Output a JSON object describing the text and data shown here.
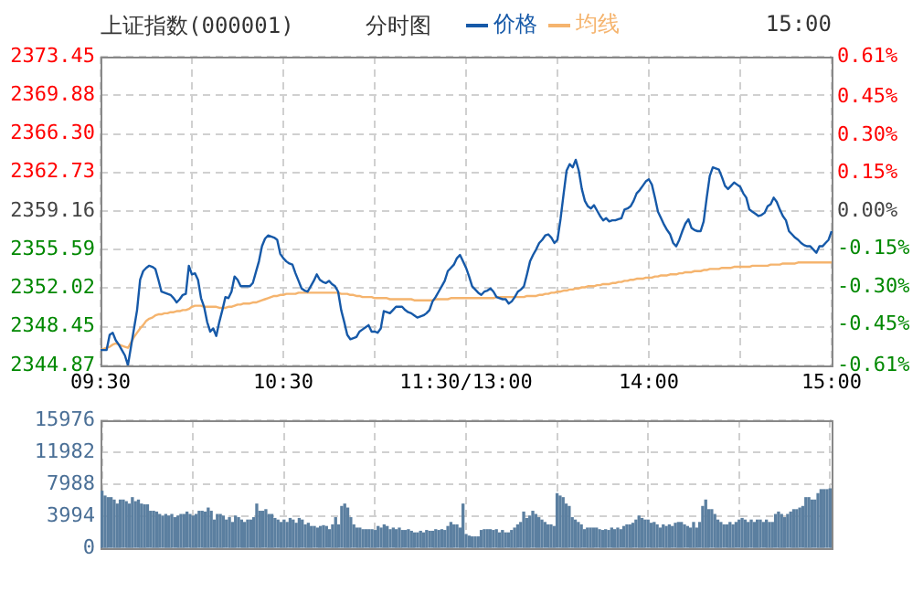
{
  "chart_data": [
    {
      "type": "line",
      "title": "上证指数(000001)",
      "subtitle": "分时图",
      "annotations": [
        "15:00"
      ],
      "legend": "top",
      "grid": true,
      "categories": [
        "09:30",
        null,
        null,
        null,
        null,
        null,
        null,
        null,
        null,
        null,
        null,
        null,
        null,
        null,
        null,
        null,
        null,
        null,
        null,
        null,
        null,
        null,
        null,
        null,
        null,
        null,
        null,
        null,
        null,
        null,
        null,
        null,
        null,
        null,
        null,
        null,
        null,
        null,
        null,
        null,
        null,
        null,
        null,
        null,
        null,
        null,
        null,
        null,
        null,
        null,
        null,
        null,
        null,
        null,
        null,
        null,
        null,
        null,
        null,
        null,
        "10:30",
        null,
        null,
        null,
        null,
        null,
        null,
        null,
        null,
        null,
        null,
        null,
        null,
        null,
        null,
        null,
        null,
        null,
        null,
        null,
        null,
        null,
        null,
        null,
        null,
        null,
        null,
        null,
        null,
        null,
        null,
        null,
        null,
        null,
        null,
        null,
        null,
        null,
        null,
        null,
        null,
        null,
        null,
        null,
        null,
        null,
        null,
        null,
        null,
        null,
        null,
        null,
        null,
        null,
        null,
        null,
        null,
        null,
        null,
        null,
        "11:30/13:00",
        null,
        null,
        null,
        null,
        null,
        null,
        null,
        null,
        null,
        null,
        null,
        null,
        null,
        null,
        null,
        null,
        null,
        null,
        null,
        null,
        null,
        null,
        null,
        null,
        null,
        null,
        null,
        null,
        null,
        null,
        null,
        null,
        null,
        null,
        null,
        null,
        null,
        null,
        null,
        null,
        null,
        null,
        null,
        null,
        null,
        null,
        null,
        null,
        null,
        null,
        null,
        null,
        null,
        null,
        null,
        null,
        null,
        null,
        null,
        "14:00",
        null,
        null,
        null,
        null,
        null,
        null,
        null,
        null,
        null,
        null,
        null,
        null,
        null,
        null,
        null,
        null,
        null,
        null,
        null,
        null,
        null,
        null,
        null,
        null,
        null,
        null,
        null,
        null,
        null,
        null,
        null,
        null,
        null,
        null,
        null,
        null,
        null,
        null,
        null,
        null,
        null,
        null,
        null,
        null,
        null,
        null,
        null,
        null,
        null,
        null,
        null,
        null,
        null,
        null,
        null,
        null,
        null,
        null,
        null,
        "15:00"
      ],
      "ylim": [
        2344.87,
        2373.45
      ],
      "yticks": [
        2344.87,
        2348.45,
        2352.02,
        2355.59,
        2359.16,
        2362.73,
        {
          "value": 2366.3,
          "label": "2366.30"
        },
        2369.88,
        2373.45
      ],
      "y2lim": [
        -0.61,
        0.61
      ],
      "y2ticks": [
        {
          "value": -0.61,
          "label": "-0.61%"
        },
        {
          "value": -0.45,
          "label": "-0.45%"
        },
        {
          "value": -0.3,
          "label": "-0.30%"
        },
        {
          "value": -0.15,
          "label": "-0.15%"
        },
        {
          "value": 0,
          "label": "0.00%"
        },
        {
          "value": 0.15,
          "label": "0.15%"
        },
        {
          "value": 0.3,
          "label": "0.30%"
        },
        {
          "value": 0.45,
          "label": "0.45%"
        },
        {
          "value": 0.61,
          "label": "0.61%"
        }
      ],
      "series": [
        {
          "name": "价格",
          "color": "#1659a8",
          "values": [
            2346.3,
            2346.3,
            2346.3,
            2347.7,
            2347.9,
            2347.2,
            2346.8,
            2346.3,
            2345.8,
            2344.9,
            2346.6,
            2348.3,
            2350.0,
            2352.8,
            2353.6,
            2353.9,
            2354.1,
            2354.0,
            2353.8,
            2352.8,
            2351.7,
            2351.6,
            2351.5,
            2351.4,
            2351.1,
            2350.7,
            2351.0,
            2351.4,
            2351.5,
            2354.1,
            2353.3,
            2353.4,
            2352.8,
            2351.1,
            2350.3,
            2348.9,
            2348.0,
            2348.3,
            2347.6,
            2348.9,
            2350.0,
            2351.2,
            2351.1,
            2351.7,
            2353.1,
            2352.8,
            2352.2,
            2352.2,
            2352.2,
            2352.2,
            2352.5,
            2353.5,
            2354.5,
            2355.9,
            2356.6,
            2356.9,
            2356.8,
            2356.7,
            2356.5,
            2355.2,
            2354.8,
            2354.5,
            2354.3,
            2354.2,
            2353.4,
            2352.7,
            2352.0,
            2351.8,
            2351.7,
            2352.2,
            2352.7,
            2353.3,
            2352.8,
            2352.6,
            2352.5,
            2352.7,
            2352.4,
            2352.2,
            2351.7,
            2350.0,
            2348.9,
            2347.7,
            2347.3,
            2347.4,
            2347.5,
            2348.0,
            2348.2,
            2348.4,
            2348.6,
            2348.0,
            2348.0,
            2347.9,
            2348.3,
            2349.9,
            2349.8,
            2349.7,
            2350.0,
            2350.3,
            2350.3,
            2350.3,
            2350.0,
            2349.8,
            2349.7,
            2349.5,
            2349.3,
            2349.4,
            2349.5,
            2349.7,
            2350.0,
            2350.8,
            2351.2,
            2351.7,
            2352.2,
            2352.7,
            2353.6,
            2353.9,
            2354.2,
            2354.8,
            2355.1,
            2354.5,
            2353.9,
            2353.1,
            2352.2,
            2351.9,
            2351.6,
            2351.4,
            2351.7,
            2351.8,
            2352.0,
            2351.7,
            2351.2,
            2351.1,
            2351.0,
            2351.0,
            2350.6,
            2350.8,
            2351.2,
            2351.7,
            2351.9,
            2352.2,
            2353.3,
            2354.5,
            2355.1,
            2355.6,
            2356.2,
            2356.5,
            2356.9,
            2357.0,
            2356.7,
            2356.2,
            2356.5,
            2358.4,
            2360.7,
            2362.9,
            2363.5,
            2363.2,
            2363.9,
            2362.9,
            2361.2,
            2360.1,
            2359.6,
            2359.4,
            2359.7,
            2359.2,
            2358.7,
            2358.3,
            2358.5,
            2358.2,
            2358.3,
            2358.3,
            2358.4,
            2358.5,
            2359.3,
            2359.4,
            2359.6,
            2360.1,
            2360.8,
            2361.1,
            2361.5,
            2361.9,
            2362.1,
            2361.6,
            2360.4,
            2359.1,
            2358.5,
            2357.9,
            2357.4,
            2357.0,
            2356.2,
            2355.9,
            2356.5,
            2357.3,
            2358.0,
            2358.4,
            2357.6,
            2357.4,
            2357.3,
            2357.3,
            2358.2,
            2360.4,
            2362.4,
            2363.2,
            2363.1,
            2363.0,
            2362.3,
            2361.5,
            2361.2,
            2361.5,
            2361.8,
            2361.6,
            2361.4,
            2360.8,
            2360.4,
            2359.3,
            2359.1,
            2358.9,
            2358.7,
            2358.8,
            2359.0,
            2359.6,
            2359.8,
            2360.4,
            2360.0,
            2359.3,
            2358.7,
            2358.3,
            2357.3,
            2357.0,
            2356.7,
            2356.5,
            2356.2,
            2356.0,
            2355.9,
            2355.9,
            2355.6,
            2355.3,
            2355.9,
            2355.9,
            2356.2,
            2356.5,
            2357.3
          ]
        },
        {
          "name": "均线",
          "color": "#f5b46e",
          "values": [
            2346.3,
            2346.4,
            2346.5,
            2346.6,
            2346.8,
            2346.9,
            2346.8,
            2346.7,
            2346.6,
            2346.5,
            2347.0,
            2347.5,
            2347.9,
            2348.3,
            2348.6,
            2349.0,
            2349.2,
            2349.3,
            2349.5,
            2349.6,
            2349.6,
            2349.7,
            2349.7,
            2349.8,
            2349.8,
            2349.9,
            2349.9,
            2350.0,
            2350.0,
            2350.1,
            2350.3,
            2350.4,
            2350.4,
            2350.4,
            2350.3,
            2350.3,
            2350.3,
            2350.3,
            2350.3,
            2350.2,
            2350.2,
            2350.2,
            2350.3,
            2350.3,
            2350.4,
            2350.5,
            2350.5,
            2350.6,
            2350.6,
            2350.6,
            2350.7,
            2350.7,
            2350.8,
            2350.9,
            2351.0,
            2351.1,
            2351.2,
            2351.3,
            2351.3,
            2351.4,
            2351.4,
            2351.5,
            2351.5,
            2351.5,
            2351.5,
            2351.6,
            2351.6,
            2351.6,
            2351.6,
            2351.6,
            2351.6,
            2351.6,
            2351.6,
            2351.6,
            2351.6,
            2351.6,
            2351.6,
            2351.6,
            2351.6,
            2351.5,
            2351.5,
            2351.5,
            2351.4,
            2351.4,
            2351.3,
            2351.3,
            2351.2,
            2351.2,
            2351.2,
            2351.2,
            2351.1,
            2351.1,
            2351.1,
            2351.1,
            2351.1,
            2351.0,
            2351.0,
            2351.0,
            2351.0,
            2351.0,
            2351.0,
            2351.0,
            2351.0,
            2350.9,
            2350.9,
            2350.9,
            2350.9,
            2350.9,
            2350.9,
            2350.9,
            2351.0,
            2351.0,
            2351.0,
            2351.0,
            2351.0,
            2351.1,
            2351.1,
            2351.1,
            2351.1,
            2351.1,
            2351.1,
            2351.1,
            2351.1,
            2351.1,
            2351.1,
            2351.1,
            2351.1,
            2351.1,
            2351.1,
            2351.1,
            2351.2,
            2351.2,
            2351.2,
            2351.2,
            2351.2,
            2351.2,
            2351.2,
            2351.2,
            2351.2,
            2351.2,
            2351.3,
            2351.3,
            2351.3,
            2351.3,
            2351.4,
            2351.4,
            2351.5,
            2351.5,
            2351.6,
            2351.6,
            2351.7,
            2351.7,
            2351.8,
            2351.8,
            2351.9,
            2351.9,
            2352.0,
            2352.0,
            2352.1,
            2352.1,
            2352.2,
            2352.2,
            2352.2,
            2352.3,
            2352.3,
            2352.4,
            2352.4,
            2352.4,
            2352.5,
            2352.5,
            2352.6,
            2352.6,
            2352.7,
            2352.7,
            2352.8,
            2352.8,
            2352.9,
            2352.9,
            2352.9,
            2353.0,
            2353.0,
            2353.0,
            2353.1,
            2353.1,
            2353.2,
            2353.2,
            2353.2,
            2353.3,
            2353.3,
            2353.3,
            2353.4,
            2353.4,
            2353.5,
            2353.5,
            2353.5,
            2353.6,
            2353.6,
            2353.6,
            2353.7,
            2353.7,
            2353.8,
            2353.8,
            2353.8,
            2353.8,
            2353.9,
            2353.9,
            2353.9,
            2353.9,
            2354.0,
            2354.0,
            2354.0,
            2354.0,
            2354.0,
            2354.0,
            2354.1,
            2354.1,
            2354.1,
            2354.1,
            2354.1,
            2354.1,
            2354.2,
            2354.2,
            2354.2,
            2354.2,
            2354.3,
            2354.3,
            2354.3,
            2354.3,
            2354.3,
            2354.4,
            2354.4,
            2354.4,
            2354.4,
            2354.4,
            2354.4,
            2354.4,
            2354.4,
            2354.4,
            2354.4,
            2354.4,
            2354.4
          ]
        }
      ]
    },
    {
      "type": "bar",
      "grid": true,
      "color": "#5b7fa0",
      "categories": [
        null,
        null,
        null,
        null,
        null,
        null,
        null,
        null,
        null,
        null,
        null,
        null,
        null,
        null,
        null,
        null,
        null,
        null,
        null,
        null,
        null,
        null,
        null,
        null,
        null,
        null,
        null,
        null,
        null,
        null,
        null,
        null,
        null,
        null,
        null,
        null,
        null,
        null,
        null,
        null,
        null,
        null,
        null,
        null,
        null,
        null,
        null,
        null,
        null,
        null,
        null,
        null,
        null,
        null,
        null,
        null,
        null,
        null,
        null,
        null,
        null,
        null,
        null,
        null,
        null,
        null,
        null,
        null,
        null,
        null,
        null,
        null,
        null,
        null,
        null,
        null,
        null,
        null,
        null,
        null,
        null,
        null,
        null,
        null,
        null,
        null,
        null,
        null,
        null,
        null,
        null,
        null,
        null,
        null,
        null,
        null,
        null,
        null,
        null,
        null,
        null,
        null,
        null,
        null,
        null,
        null,
        null,
        null,
        null,
        null,
        null,
        null,
        null,
        null,
        null,
        null,
        null,
        null,
        null,
        null,
        null,
        null,
        null,
        null,
        null,
        null,
        null,
        null,
        null,
        null,
        null,
        null,
        null,
        null,
        null,
        null,
        null,
        null,
        null,
        null,
        null,
        null,
        null,
        null,
        null,
        null,
        null,
        null,
        null,
        null,
        null,
        null,
        null,
        null,
        null,
        null,
        null,
        null,
        null,
        null,
        null,
        null,
        null,
        null,
        null,
        null,
        null,
        null,
        null,
        null,
        null,
        null,
        null,
        null,
        null,
        null,
        null,
        null,
        null,
        null,
        null,
        null,
        null,
        null,
        null,
        null,
        null,
        null,
        null,
        null,
        null,
        null,
        null,
        null,
        null,
        null,
        null,
        null,
        null,
        null,
        null,
        null,
        null,
        null,
        null,
        null,
        null,
        null,
        null,
        null,
        null,
        null,
        null,
        null,
        null,
        null,
        null,
        null,
        null,
        null,
        null,
        null,
        null,
        null,
        null,
        null,
        null,
        null,
        null,
        null,
        null,
        null,
        null,
        null,
        null,
        null,
        null,
        null,
        null,
        null,
        null
      ],
      "ylim": [
        0,
        15976
      ],
      "yticks": [
        0,
        3994,
        7988,
        11982,
        15976
      ],
      "values": [
        7100,
        6500,
        6300,
        6300,
        6000,
        5500,
        6000,
        6000,
        5800,
        5500,
        6300,
        5800,
        6000,
        5500,
        5400,
        5400,
        4600,
        4600,
        4500,
        4200,
        4000,
        4200,
        4000,
        4200,
        3800,
        4000,
        4200,
        4200,
        4500,
        4200,
        4000,
        4200,
        4600,
        4600,
        4500,
        5000,
        4600,
        3500,
        4200,
        4200,
        4000,
        3500,
        3800,
        3200,
        4000,
        3800,
        3500,
        3200,
        3500,
        3500,
        3800,
        5500,
        4600,
        4600,
        4800,
        4200,
        4200,
        3700,
        3500,
        3200,
        3500,
        3200,
        3700,
        3500,
        3100,
        3700,
        3500,
        2900,
        3100,
        2700,
        2700,
        2500,
        2700,
        2800,
        2700,
        2300,
        2900,
        3800,
        2900,
        5200,
        5500,
        5000,
        3800,
        2900,
        2500,
        2500,
        2300,
        2300,
        2300,
        2300,
        2200,
        2700,
        2500,
        2900,
        2700,
        2300,
        2500,
        2300,
        2500,
        2200,
        2200,
        2300,
        2100,
        1900,
        1900,
        2100,
        1900,
        2200,
        2100,
        2100,
        2300,
        2200,
        2300,
        2200,
        2700,
        3200,
        2900,
        2900,
        2500,
        5500,
        1700,
        1500,
        1400,
        1400,
        1400,
        2200,
        2300,
        2300,
        2300,
        2200,
        2300,
        1900,
        2200,
        1900,
        1900,
        2200,
        2500,
        2900,
        3200,
        4500,
        3700,
        4000,
        4600,
        4200,
        3800,
        3500,
        3200,
        2900,
        2900,
        2700,
        6800,
        6500,
        6300,
        5500,
        5200,
        3800,
        3500,
        3200,
        2900,
        2300,
        2500,
        2500,
        2500,
        2500,
        2300,
        2200,
        2300,
        2200,
        2500,
        2300,
        2500,
        2300,
        2700,
        2900,
        2900,
        3100,
        3500,
        4000,
        3700,
        3500,
        3500,
        3100,
        3200,
        2900,
        2500,
        2900,
        2700,
        2900,
        2700,
        3100,
        3200,
        3200,
        2900,
        2700,
        2500,
        3200,
        2500,
        3200,
        5200,
        6000,
        4800,
        4800,
        4200,
        3500,
        3200,
        2900,
        2900,
        3200,
        2900,
        3200,
        3500,
        3700,
        3500,
        3200,
        3500,
        3200,
        3500,
        3500,
        3200,
        3500,
        3200,
        3200,
        4200,
        4500,
        4200,
        3800,
        4200,
        4500,
        4800,
        4800,
        5000,
        5200,
        6300,
        6300,
        6000,
        6000,
        6800,
        7300,
        7300,
        7300,
        7400
      ]
    }
  ]
}
